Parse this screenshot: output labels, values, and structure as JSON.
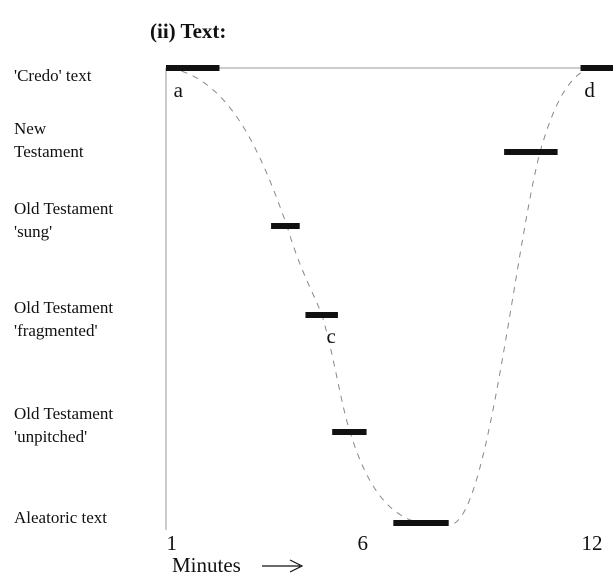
{
  "chart_data": {
    "type": "range",
    "title": "(ii) Text:",
    "xlabel": "Minutes",
    "categories": [
      "'Credo' text",
      "New\nTestament",
      "Old Testament\n'sung'",
      "Old Testament\n'fragmented'",
      "Old Testament\n'unpitched'",
      "Aleatoric  text"
    ],
    "ranges": [
      [
        [
          0.85,
          2.25
        ],
        [
          11.7,
          12.55
        ]
      ],
      [
        [
          9.7,
          11.1
        ]
      ],
      [
        [
          3.6,
          4.35
        ]
      ],
      [
        [
          4.5,
          5.35
        ]
      ],
      [
        [
          5.2,
          6.1
        ]
      ],
      [
        [
          6.8,
          8.25
        ]
      ]
    ],
    "color": "#111111",
    "xlim": [
      0.85,
      12.55
    ],
    "xticks": [
      1,
      6,
      12
    ],
    "annotations": [
      {
        "text": "a",
        "x": 1.05
      },
      {
        "text": "c",
        "x": 5.05
      },
      {
        "text": "d",
        "x": 11.8
      }
    ]
  }
}
